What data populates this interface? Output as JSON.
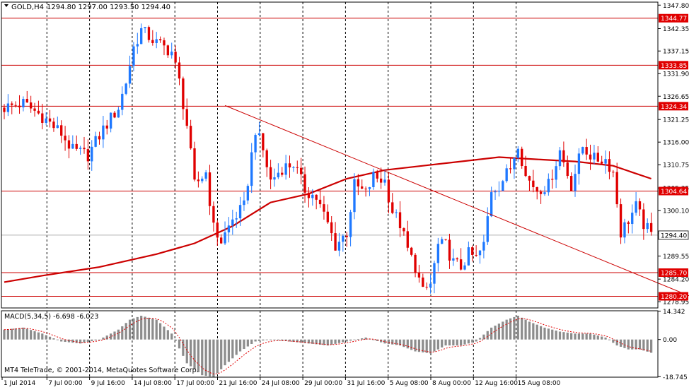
{
  "header": {
    "symbol": "GOLD,H4",
    "ohlc": "1294.80 1297.00 1293.50 1294.40"
  },
  "macd_header": {
    "label": "MACD(5,34,5) -6.698 -6.023"
  },
  "copyright": "MT4 TeleTrade, © 2001-2014, MetaQuotes Software Corp.",
  "colors": {
    "background": "#ffffff",
    "bull": "#1e78ff",
    "bear": "#e00000",
    "ma": "#cc0000",
    "level_line": "#cc0000",
    "level_tag_bg": "#e00000",
    "current_tag_bg": "#ffffff",
    "macd_bar": "#8c8c8c",
    "macd_signal": "#e00000",
    "grid": "#000000",
    "axis_text": "#000000"
  },
  "chart_data": [
    {
      "type": "candlestick",
      "title": "GOLD,H4",
      "ylim": [
        1277.5,
        1348.5
      ],
      "y_ticks": [
        "1347.80",
        "1342.35",
        "1337.15",
        "1331.90",
        "1326.65",
        "1321.25",
        "1316.00",
        "1310.75",
        "1305.35",
        "1300.10",
        "1294.85",
        "1289.55",
        "1284.20",
        "1278.95"
      ],
      "x_ticks": [
        "1 Jul 2014",
        "7 Jul 00:00",
        "9 Jul 16:00",
        "14 Jul 08:00",
        "17 Jul 00:00",
        "21 Jul 16:00",
        "24 Jul 08:00",
        "29 Jul 00:00",
        "31 Jul 16:00",
        "5 Aug 08:00",
        "8 Aug 00:00",
        "12 Aug 16:00",
        "15 Aug 08:00"
      ],
      "grid": "vertical dashed",
      "close_path": [
        [
          0,
          1324
        ],
        [
          5,
          1325
        ],
        [
          10,
          1322
        ],
        [
          15,
          1318
        ],
        [
          18,
          1314
        ],
        [
          22,
          1313
        ],
        [
          26,
          1319
        ],
        [
          30,
          1324
        ],
        [
          32,
          1330
        ],
        [
          34,
          1338
        ],
        [
          36,
          1342
        ],
        [
          40,
          1339
        ],
        [
          44,
          1337
        ],
        [
          46,
          1330
        ],
        [
          48,
          1320
        ],
        [
          50,
          1306
        ],
        [
          53,
          1309
        ],
        [
          55,
          1296
        ],
        [
          57,
          1293
        ],
        [
          60,
          1298
        ],
        [
          63,
          1301
        ],
        [
          66,
          1319
        ],
        [
          68,
          1314
        ],
        [
          70,
          1307
        ],
        [
          73,
          1310
        ],
        [
          76,
          1311
        ],
        [
          79,
          1305
        ],
        [
          82,
          1303
        ],
        [
          85,
          1297
        ],
        [
          87,
          1292
        ],
        [
          90,
          1295
        ],
        [
          92,
          1306
        ],
        [
          95,
          1304
        ],
        [
          97,
          1308
        ],
        [
          100,
          1307
        ],
        [
          102,
          1300
        ],
        [
          104,
          1297
        ],
        [
          106,
          1291
        ],
        [
          108,
          1287
        ],
        [
          110,
          1281
        ],
        [
          112,
          1283
        ],
        [
          114,
          1292
        ],
        [
          116,
          1292
        ],
        [
          118,
          1288
        ],
        [
          120,
          1287
        ],
        [
          122,
          1290
        ],
        [
          124,
          1289
        ],
        [
          126,
          1292
        ],
        [
          128,
          1305
        ],
        [
          130,
          1306
        ],
        [
          133,
          1310
        ],
        [
          135,
          1316
        ],
        [
          137,
          1308
        ],
        [
          140,
          1305
        ],
        [
          143,
          1306
        ],
        [
          146,
          1314
        ],
        [
          149,
          1306
        ],
        [
          152,
          1315
        ],
        [
          155,
          1312
        ],
        [
          158,
          1312
        ],
        [
          160,
          1309
        ],
        [
          162,
          1295
        ],
        [
          164,
          1298
        ],
        [
          166,
          1301
        ],
        [
          168,
          1297
        ],
        [
          170,
          1294.4
        ]
      ],
      "moving_average": [
        [
          0,
          1283.5
        ],
        [
          10,
          1285
        ],
        [
          25,
          1287
        ],
        [
          40,
          1290
        ],
        [
          50,
          1292.5
        ],
        [
          60,
          1296.5
        ],
        [
          70,
          1302
        ],
        [
          80,
          1304
        ],
        [
          90,
          1307.5
        ],
        [
          100,
          1309.5
        ],
        [
          110,
          1310.5
        ],
        [
          120,
          1311.5
        ],
        [
          130,
          1312.5
        ],
        [
          140,
          1312
        ],
        [
          150,
          1311.5
        ],
        [
          160,
          1310.5
        ],
        [
          165,
          1309
        ],
        [
          170,
          1307.5
        ]
      ],
      "trendline": [
        [
          58,
          1324.5
        ],
        [
          185,
          1278.5
        ]
      ],
      "levels": [
        "1344.77",
        "1333.85",
        "1324.34",
        "1304.64",
        "1285.70",
        "1280.20"
      ],
      "current_price": "1294.40"
    },
    {
      "type": "bar",
      "title": "MACD(5,34,5) -6.698 -6.023",
      "ylim": [
        -19,
        14.5
      ],
      "y_ticks": [
        "14.342",
        "0.00",
        "-18.745"
      ],
      "main_path": [
        [
          0,
          5
        ],
        [
          5,
          6
        ],
        [
          10,
          3
        ],
        [
          15,
          -1
        ],
        [
          20,
          -2
        ],
        [
          25,
          0
        ],
        [
          30,
          5
        ],
        [
          33,
          10
        ],
        [
          36,
          12
        ],
        [
          40,
          10
        ],
        [
          44,
          3
        ],
        [
          48,
          -12
        ],
        [
          52,
          -18
        ],
        [
          55,
          -19
        ],
        [
          58,
          -13
        ],
        [
          62,
          -6
        ],
        [
          66,
          -1
        ],
        [
          70,
          0
        ],
        [
          75,
          -1
        ],
        [
          80,
          -2
        ],
        [
          85,
          -3
        ],
        [
          90,
          -1
        ],
        [
          95,
          1
        ],
        [
          100,
          -2
        ],
        [
          104,
          -3
        ],
        [
          108,
          -6
        ],
        [
          112,
          -7
        ],
        [
          116,
          -3
        ],
        [
          120,
          -3
        ],
        [
          124,
          -1
        ],
        [
          128,
          6
        ],
        [
          132,
          10
        ],
        [
          135,
          12
        ],
        [
          138,
          9
        ],
        [
          142,
          6
        ],
        [
          146,
          4
        ],
        [
          150,
          3
        ],
        [
          154,
          3
        ],
        [
          158,
          1
        ],
        [
          161,
          -3
        ],
        [
          164,
          -5
        ],
        [
          167,
          -5
        ],
        [
          170,
          -6.698
        ]
      ],
      "signal_last": -6.023
    }
  ]
}
